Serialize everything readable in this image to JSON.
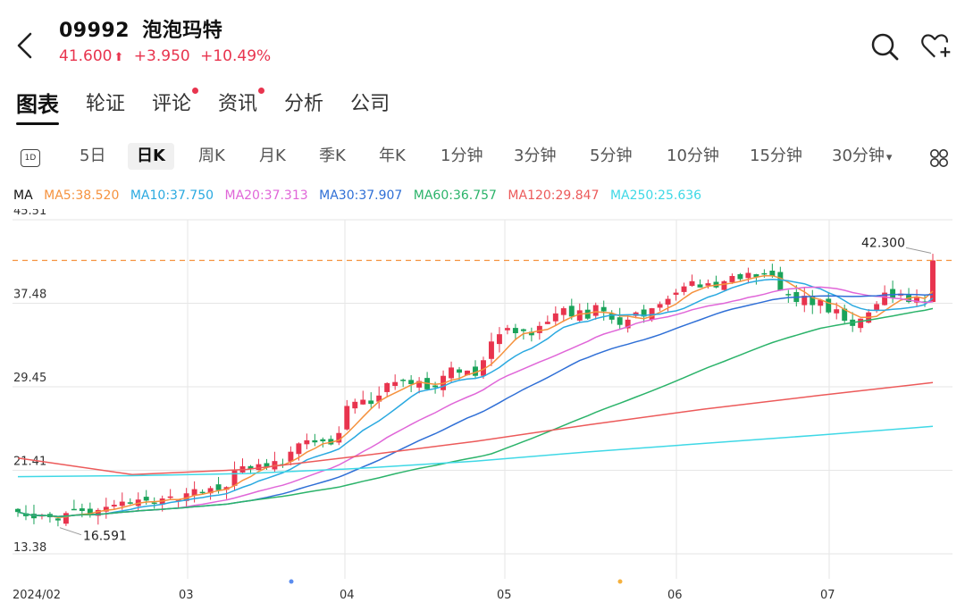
{
  "header": {
    "code": "09992",
    "name": "泡泡玛特",
    "price": "41.600",
    "change": "+3.950",
    "change_pct": "+10.49%",
    "up_color": "#e8344e",
    "icons": [
      "back-icon",
      "search-icon",
      "favorite-add-icon"
    ]
  },
  "tabs": [
    {
      "label": "图表",
      "active": true,
      "dot": false
    },
    {
      "label": "轮证",
      "active": false,
      "dot": false
    },
    {
      "label": "评论",
      "active": false,
      "dot": true
    },
    {
      "label": "资讯",
      "active": false,
      "dot": true
    },
    {
      "label": "分析",
      "active": false,
      "dot": false
    },
    {
      "label": "公司",
      "active": false,
      "dot": false
    }
  ],
  "periods": {
    "badge": "1D",
    "items": [
      "5日",
      "日K",
      "周K",
      "月K",
      "季K",
      "年K",
      "1分钟",
      "3分钟",
      "5分钟",
      "10分钟",
      "15分钟",
      "30分钟"
    ],
    "active": "日K",
    "dropdown_caret": "▾"
  },
  "ma_legend": {
    "prefix": "MA",
    "items": [
      {
        "label": "MA5:38.520",
        "color": "#f5923e"
      },
      {
        "label": "MA10:37.750",
        "color": "#2aa9e0"
      },
      {
        "label": "MA20:37.313",
        "color": "#e066d8"
      },
      {
        "label": "MA30:37.907",
        "color": "#2f6fd6"
      },
      {
        "label": "MA60:36.757",
        "color": "#2bb36a"
      },
      {
        "label": "MA120:29.847",
        "color": "#ec5a5a"
      },
      {
        "label": "MA250:25.636",
        "color": "#3fd8e6"
      }
    ]
  },
  "chart_data": {
    "type": "candlestick",
    "y_ticks": [
      "45.51",
      "37.48",
      "29.45",
      "21.41",
      "13.38"
    ],
    "ylim": [
      13.38,
      45.51
    ],
    "x_labels": [
      "2024/02",
      "03",
      "04",
      "05",
      "06",
      "07"
    ],
    "last_price_line": 41.6,
    "annotations": [
      {
        "label": "42.300",
        "type": "high"
      },
      {
        "label": "16.591",
        "type": "low"
      }
    ],
    "up_color": "#e8344e",
    "down_color": "#1aa35a",
    "close_series": [
      17.4,
      17.0,
      16.8,
      17.1,
      16.9,
      16.591,
      17.3,
      17.6,
      17.5,
      17.2,
      17.6,
      17.9,
      18.1,
      18.4,
      18.2,
      18.6,
      18.5,
      18.3,
      18.7,
      18.9,
      18.6,
      19.2,
      19.6,
      19.3,
      19.7,
      19.5,
      19.8,
      21.4,
      21.8,
      21.5,
      22.0,
      21.7,
      22.3,
      22.0,
      23.2,
      24.0,
      24.3,
      24.1,
      24.2,
      23.9,
      25.0,
      27.6,
      28.0,
      28.2,
      27.8,
      28.6,
      29.8,
      29.9,
      30.1,
      29.7,
      30.0,
      29.2,
      29.4,
      30.5,
      31.3,
      30.8,
      31.0,
      30.5,
      32.0,
      33.8,
      34.5,
      35.1,
      34.6,
      34.8,
      34.4,
      35.3,
      35.7,
      36.5,
      37.0,
      36.2,
      36.8,
      36.0,
      37.3,
      36.7,
      35.9,
      35.4,
      35.9,
      36.6,
      36.2,
      37.0,
      37.4,
      37.9,
      38.5,
      39.1,
      39.6,
      39.0,
      39.4,
      39.0,
      39.6,
      40.1,
      39.8,
      40.4,
      40.0,
      40.3,
      40.1,
      38.7,
      38.3,
      37.6,
      38.2,
      37.3,
      37.8,
      36.6,
      36.9,
      35.8,
      35.3,
      36.0,
      36.6,
      37.4,
      38.5,
      38.0,
      38.4,
      37.6,
      38.0,
      37.65,
      41.6
    ]
  }
}
